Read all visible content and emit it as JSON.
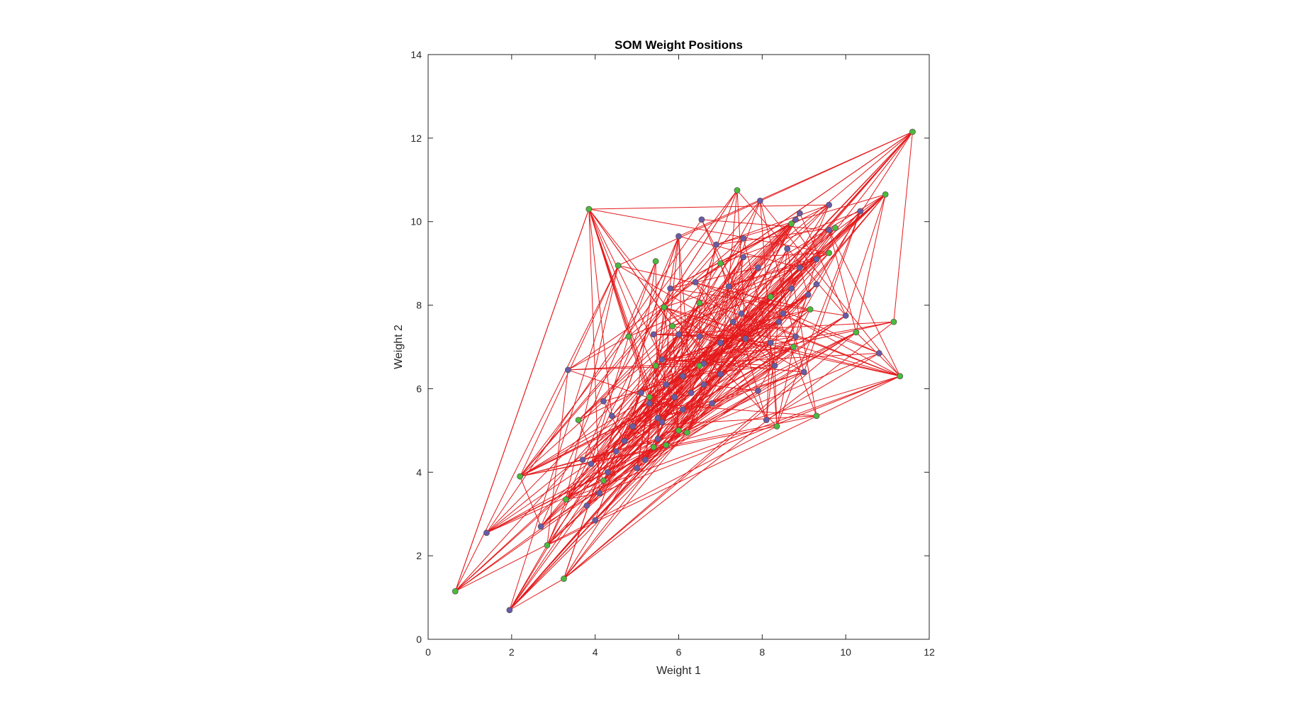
{
  "chart_data": {
    "type": "scatter",
    "title": "SOM Weight Positions",
    "xlabel": "Weight 1",
    "ylabel": "Weight 2",
    "xlim": [
      0,
      12
    ],
    "ylim": [
      0,
      14
    ],
    "xticks": [
      "0",
      "2",
      "4",
      "6",
      "8",
      "10",
      "12"
    ],
    "yticks": [
      "0",
      "2",
      "4",
      "6",
      "8",
      "10",
      "12",
      "14"
    ],
    "grid": false,
    "colors": {
      "edge": "#e41a1c",
      "weight_marker": "#6a5aa8",
      "input_marker": "#4cbb3a",
      "marker_edge": "#555555",
      "axes": "#262626"
    },
    "series": [
      {
        "marker": "purple-circle",
        "points": [
          [
            1.4,
            2.55
          ],
          [
            1.95,
            0.7
          ],
          [
            2.7,
            2.7
          ],
          [
            3.35,
            6.45
          ],
          [
            4.0,
            2.85
          ],
          [
            3.8,
            3.2
          ],
          [
            4.2,
            5.7
          ],
          [
            4.4,
            5.35
          ],
          [
            3.7,
            4.3
          ],
          [
            3.9,
            4.2
          ],
          [
            4.5,
            4.5
          ],
          [
            4.7,
            4.75
          ],
          [
            4.9,
            5.1
          ],
          [
            5.2,
            4.3
          ],
          [
            5.5,
            5.3
          ],
          [
            5.7,
            6.1
          ],
          [
            5.9,
            5.8
          ],
          [
            6.1,
            6.3
          ],
          [
            6.3,
            5.9
          ],
          [
            6.6,
            6.6
          ],
          [
            6.8,
            5.65
          ],
          [
            7.0,
            7.1
          ],
          [
            7.3,
            7.6
          ],
          [
            7.6,
            7.2
          ],
          [
            7.9,
            5.95
          ],
          [
            8.1,
            5.25
          ],
          [
            8.3,
            6.55
          ],
          [
            8.5,
            7.8
          ],
          [
            8.7,
            8.4
          ],
          [
            8.9,
            8.9
          ],
          [
            9.1,
            8.25
          ],
          [
            9.3,
            8.5
          ],
          [
            9.0,
            6.4
          ],
          [
            8.8,
            7.25
          ],
          [
            10.0,
            7.75
          ],
          [
            10.8,
            6.85
          ],
          [
            10.35,
            10.25
          ],
          [
            9.6,
            10.4
          ],
          [
            8.9,
            10.2
          ],
          [
            8.8,
            10.05
          ],
          [
            7.95,
            10.5
          ],
          [
            6.55,
            10.05
          ],
          [
            6.0,
            9.65
          ],
          [
            6.9,
            9.45
          ],
          [
            7.55,
            9.15
          ],
          [
            7.9,
            8.9
          ],
          [
            5.8,
            8.4
          ],
          [
            6.4,
            8.55
          ],
          [
            7.2,
            8.45
          ],
          [
            6.0,
            7.3
          ],
          [
            5.4,
            7.3
          ],
          [
            6.5,
            7.25
          ],
          [
            7.0,
            6.35
          ],
          [
            7.5,
            7.8
          ],
          [
            8.2,
            7.1
          ],
          [
            8.4,
            7.6
          ],
          [
            9.6,
            9.8
          ],
          [
            9.3,
            9.1
          ],
          [
            8.6,
            9.35
          ],
          [
            7.55,
            9.6
          ],
          [
            5.6,
            6.7
          ],
          [
            5.1,
            5.9
          ],
          [
            5.3,
            5.65
          ],
          [
            5.6,
            5.2
          ],
          [
            6.1,
            5.5
          ],
          [
            6.6,
            6.1
          ],
          [
            4.1,
            3.5
          ],
          [
            4.3,
            4.0
          ],
          [
            5.0,
            4.1
          ],
          [
            5.5,
            4.8
          ]
        ]
      },
      {
        "marker": "green-circle",
        "points": [
          [
            0.65,
            1.15
          ],
          [
            3.25,
            1.45
          ],
          [
            2.85,
            2.25
          ],
          [
            2.2,
            3.9
          ],
          [
            3.3,
            3.35
          ],
          [
            3.6,
            5.25
          ],
          [
            4.55,
            8.95
          ],
          [
            3.85,
            10.3
          ],
          [
            4.8,
            7.25
          ],
          [
            5.45,
            9.05
          ],
          [
            5.3,
            5.8
          ],
          [
            5.45,
            6.55
          ],
          [
            5.65,
            7.95
          ],
          [
            5.85,
            7.5
          ],
          [
            6.0,
            5.0
          ],
          [
            6.2,
            4.95
          ],
          [
            6.5,
            8.05
          ],
          [
            6.5,
            6.55
          ],
          [
            7.0,
            9.0
          ],
          [
            7.4,
            10.75
          ],
          [
            8.2,
            8.2
          ],
          [
            8.35,
            5.1
          ],
          [
            8.75,
            7.0
          ],
          [
            8.7,
            9.95
          ],
          [
            9.15,
            7.9
          ],
          [
            9.3,
            5.35
          ],
          [
            9.6,
            9.25
          ],
          [
            9.75,
            9.85
          ],
          [
            10.25,
            7.35
          ],
          [
            10.95,
            10.65
          ],
          [
            11.15,
            7.6
          ],
          [
            11.3,
            6.3
          ],
          [
            11.6,
            12.15
          ],
          [
            5.4,
            4.6
          ],
          [
            5.7,
            4.65
          ],
          [
            4.2,
            3.8
          ]
        ]
      }
    ]
  }
}
